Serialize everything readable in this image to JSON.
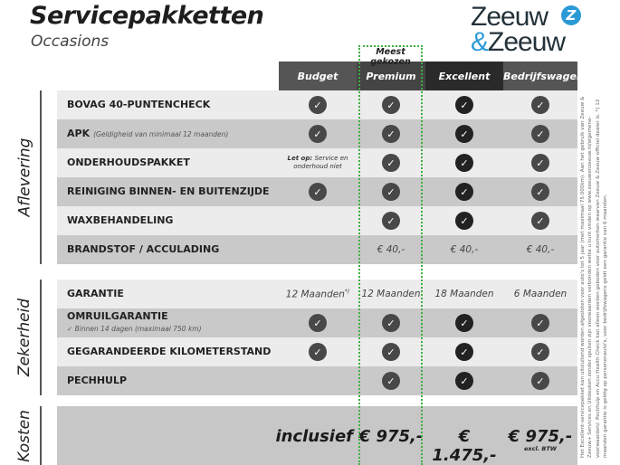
{
  "header": {
    "title": "Servicepakketten",
    "subtitle": "Occasions",
    "logo_text_1": "Zeeuw",
    "logo_text_2": "Zeeuw",
    "logo_amp": "&"
  },
  "most_chosen": "Meest gekozen",
  "columns": [
    "Budget",
    "Premium",
    "Excellent",
    "Bedrijfswagens"
  ],
  "colors": {
    "header_budget": "#555555",
    "header_premium": "#444444",
    "header_excellent": "#2a2a2a",
    "header_bedrijf": "#555555",
    "row_light": "#ececec",
    "row_dark": "#c9c9c9",
    "highlight": "#3fae3f",
    "logo_accent": "#2a9ad6"
  },
  "sections": [
    {
      "label": "Aflevering",
      "rows": [
        {
          "label": "BOVAG 40-PUNTENCHECK",
          "cells": [
            "check",
            "check",
            "check",
            "check"
          ]
        },
        {
          "label": "APK",
          "note": "(Geldigheid van minimaal 12 maanden)",
          "cells": [
            "check",
            "check",
            "check",
            "check"
          ]
        },
        {
          "label": "ONDERHOUDSPAKKET",
          "cells": [
            "Let op:|Service en onderhoud niet",
            "check",
            "check",
            "check"
          ]
        },
        {
          "label": "REINIGING BINNEN- EN BUITENZIJDE",
          "cells": [
            "check",
            "check",
            "check",
            "check"
          ]
        },
        {
          "label": "WAXBEHANDELING",
          "cells": [
            "",
            "check",
            "check",
            "check"
          ]
        },
        {
          "label": "BRANDSTOF / ACCULADING",
          "cells": [
            "",
            "€ 40,-",
            "€ 40,-",
            "€ 40,-"
          ]
        }
      ]
    },
    {
      "label": "Zekerheid",
      "rows": [
        {
          "label": "GARANTIE",
          "cells": [
            "12 Maanden*)",
            "12 Maanden",
            "18 Maanden",
            "6 Maanden"
          ]
        },
        {
          "label": "OMRUILGARANTIE",
          "sub": "✓   Binnen 14 dagen (maximaal 750 km)",
          "cells": [
            "check",
            "check",
            "check",
            "check"
          ]
        },
        {
          "label": "GEGARANDEERDE KILOMETERSTAND",
          "cells": [
            "check",
            "check",
            "check",
            "check"
          ]
        },
        {
          "label": "PECHHULP",
          "cells": [
            "",
            "check",
            "check",
            "check"
          ]
        }
      ]
    },
    {
      "label": "Kosten"
    }
  ],
  "costs": [
    "inclusief",
    "€ 975,-",
    "€ 1.475,-",
    "€ 975,-"
  ],
  "costs_note": "excl. BTW",
  "footnote": "Het Excellent-servicepakket kan uitsluitend worden afgesloten voor auto's tot 5 jaar (met maximaal 75.000km). Aan het gebruik van Zeeuw & Zeeuw+ Services en Uitdeuken zonder spuiten zijn voorwaarden verbonden welke u kunt vinden op www.zeeuwenzeeuw.nl/algemene-voorwaarden/. Pechhulp en Accu Health Check kan alleen worden geboden voor automerken waarvan Zeeuw & Zeeuw officiel dealer is. *) 12 maanden garantie is geldig op personenauto's, voor bedrijfswagens geldt een garantie van 6 maanden."
}
